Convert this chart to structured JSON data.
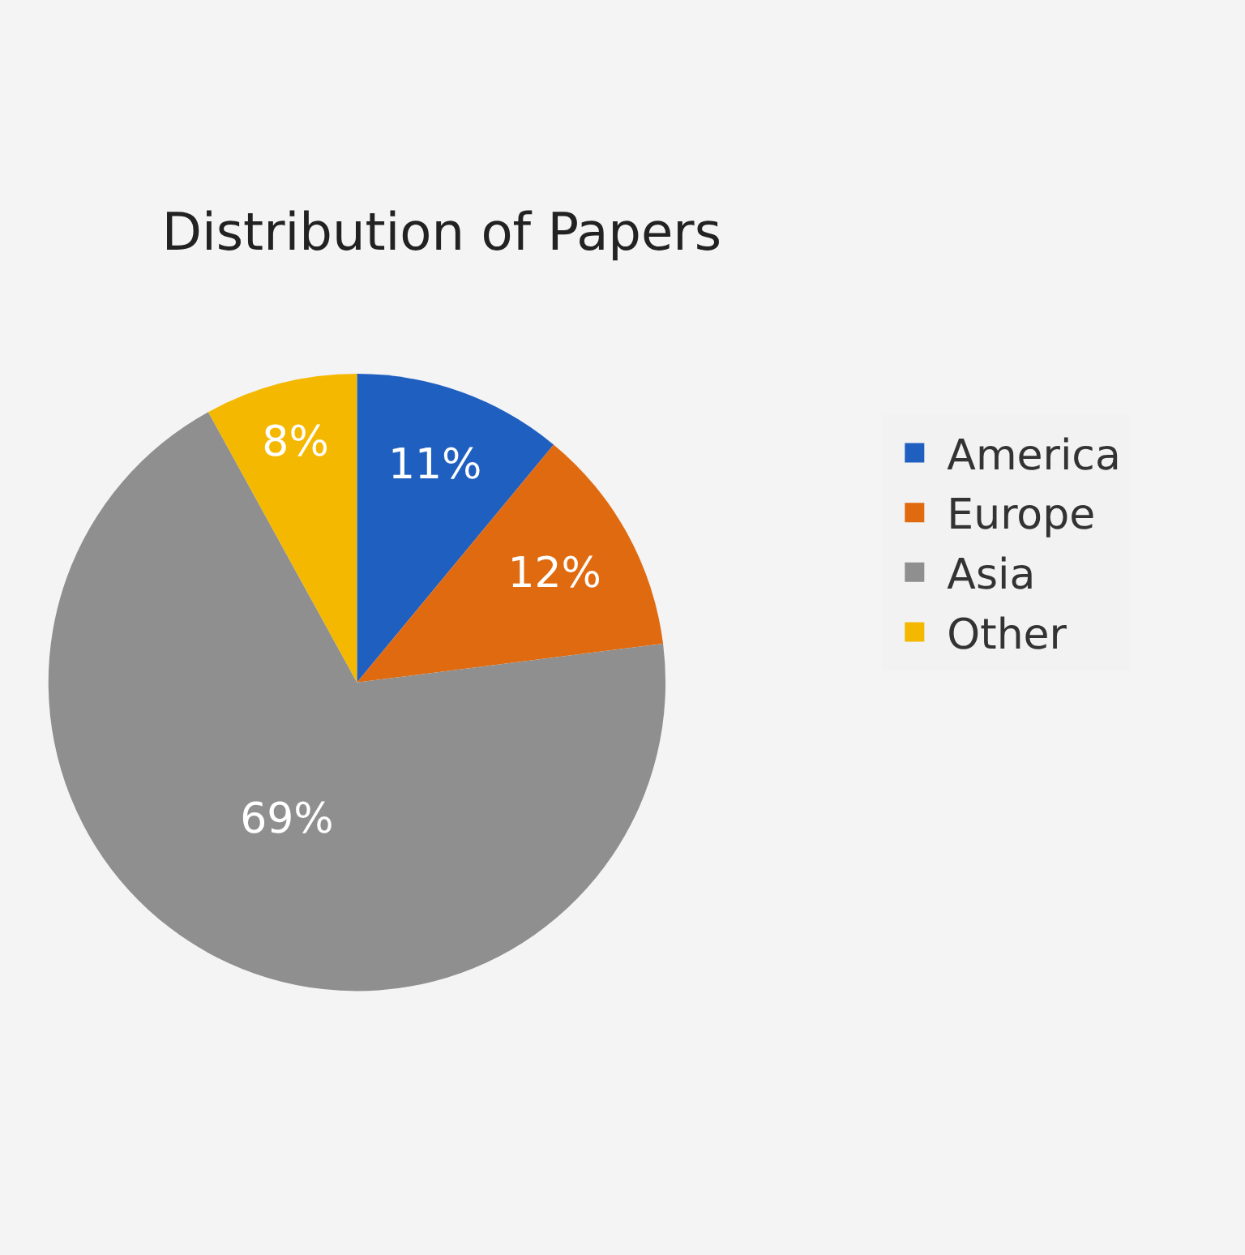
{
  "chart_data": {
    "type": "pie",
    "title": "Distribution of Papers",
    "categories": [
      "America",
      "Europe",
      "Asia",
      "Other"
    ],
    "values": [
      11,
      12,
      69,
      8
    ],
    "colors": [
      "#1f5fc0",
      "#e06a10",
      "#8f8f8f",
      "#f5b800"
    ],
    "value_labels": [
      "11%",
      "12%",
      "69%",
      "8%"
    ],
    "legend": "right"
  }
}
